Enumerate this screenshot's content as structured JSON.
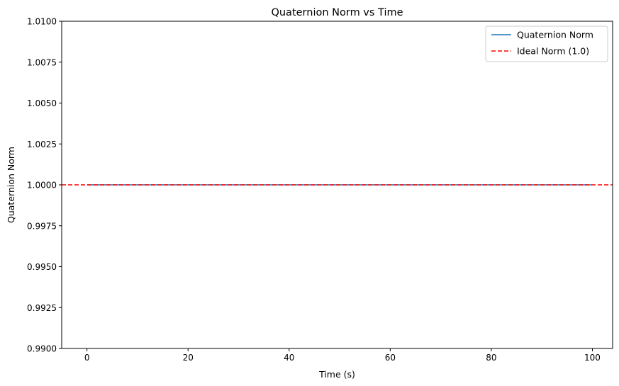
{
  "chart_data": {
    "type": "line",
    "title": "Quaternion Norm vs Time",
    "xlabel": "Time (s)",
    "ylabel": "Quaternion Norm",
    "xlim": [
      -5,
      104
    ],
    "ylim": [
      0.99,
      1.01
    ],
    "xticks": [
      0,
      20,
      40,
      60,
      80,
      100
    ],
    "xtick_labels": [
      "0",
      "20",
      "40",
      "60",
      "80",
      "100"
    ],
    "yticks": [
      0.99,
      0.9925,
      0.995,
      0.9975,
      1.0,
      1.0025,
      1.005,
      1.0075,
      1.01
    ],
    "ytick_labels": [
      "0.9900",
      "0.9925",
      "0.9950",
      "0.9975",
      "1.0000",
      "1.0025",
      "1.0050",
      "1.0075",
      "1.0100"
    ],
    "grid": false,
    "legend_position": "top-right",
    "series": [
      {
        "name": "Quaternion Norm",
        "color": "#1f77b4",
        "style": "solid",
        "x": [
          0,
          10,
          20,
          30,
          40,
          50,
          60,
          70,
          80,
          90,
          99.9
        ],
        "y": [
          1.0,
          1.0,
          1.0,
          1.0,
          1.0,
          1.0,
          1.0,
          1.0,
          1.0,
          1.0,
          1.0
        ]
      },
      {
        "name": "Ideal Norm (1.0)",
        "color": "#ff0000",
        "style": "dashed",
        "kind": "hline",
        "y_value": 1.0
      }
    ]
  }
}
